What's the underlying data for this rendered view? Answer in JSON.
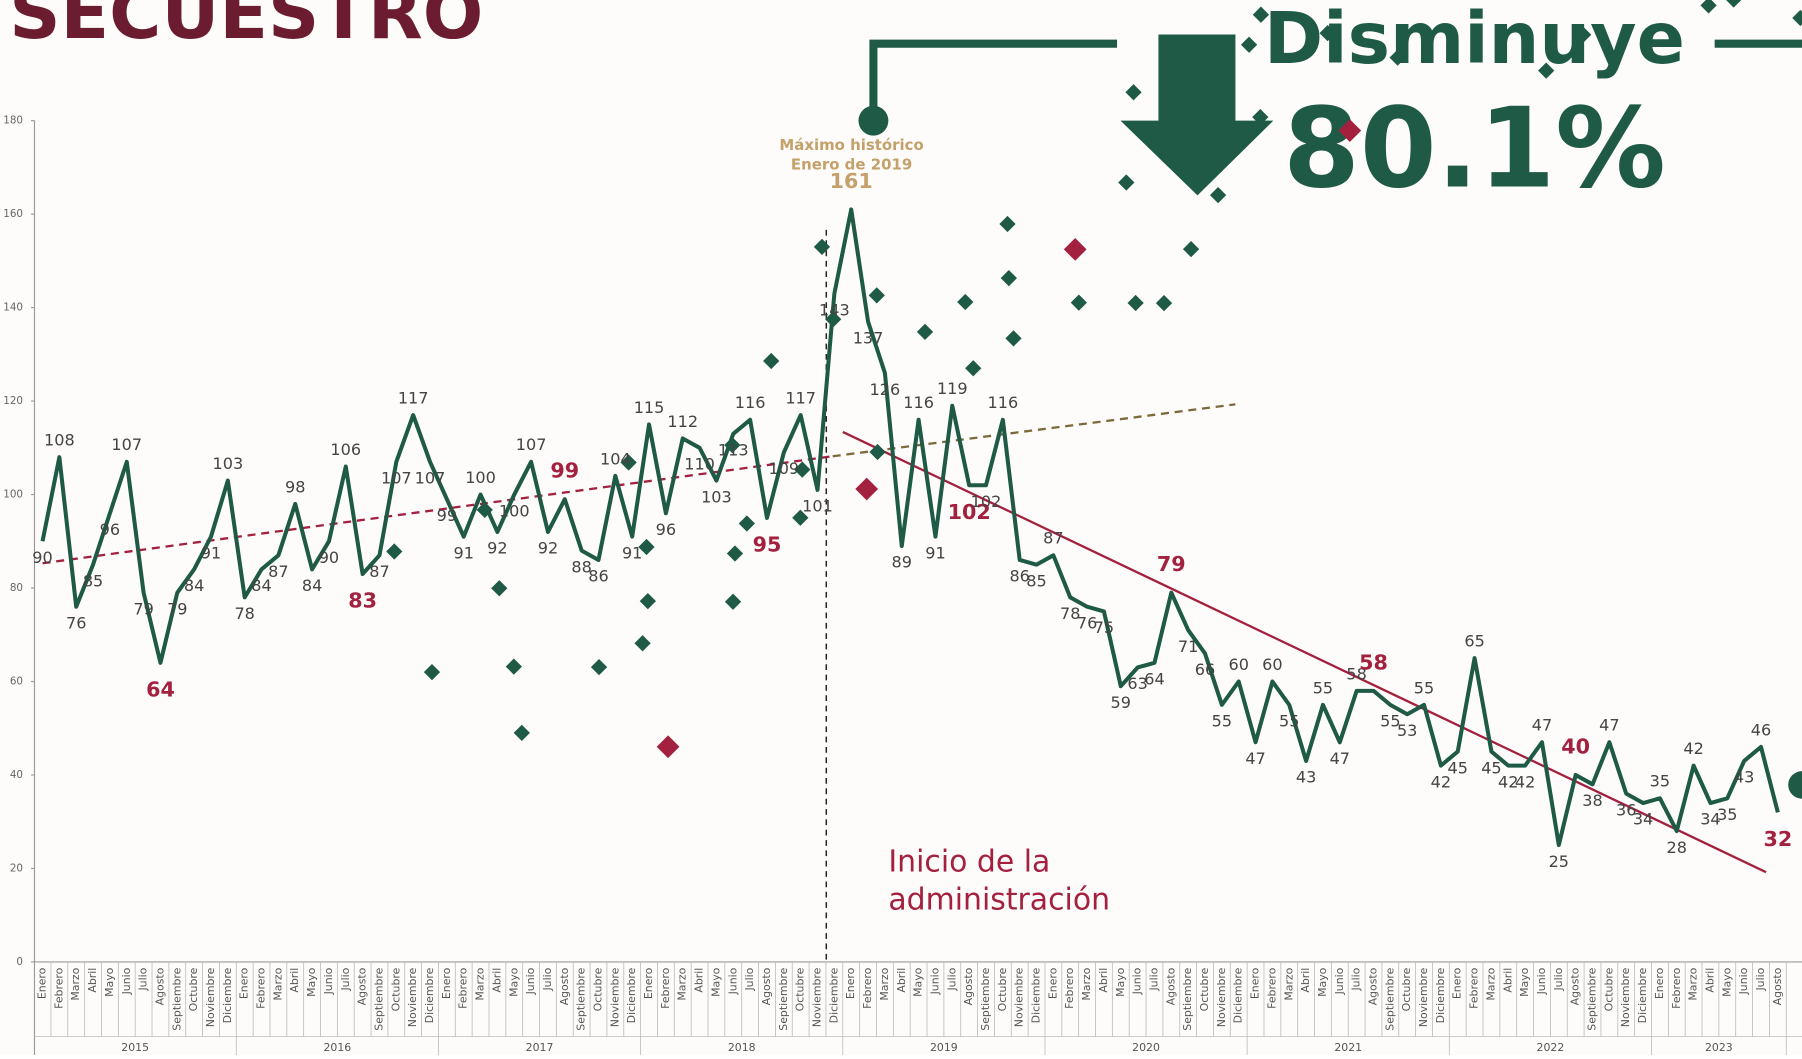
{
  "chart_data": {
    "type": "line",
    "title": "SECUESTRO",
    "headline": "Disminuye",
    "headline_value": "80.1%",
    "peak_note": [
      "Máximo histórico",
      "Enero de 2019"
    ],
    "admin_note": [
      "Inicio de la",
      "administración"
    ],
    "color": "#1e5a46",
    "years": [
      "2015",
      "2016",
      "2017",
      "2018",
      "2019",
      "2020",
      "2021",
      "2022",
      "2023"
    ],
    "categories": [
      "Enero",
      "Febrero",
      "Marzo",
      "Abril",
      "Mayo",
      "Junio",
      "Julio",
      "Agosto",
      "Septiembre",
      "Octubre",
      "Noviembre",
      "Diciembre",
      "Enero",
      "Febrero",
      "Marzo",
      "Abril",
      "Mayo",
      "Junio",
      "Julio",
      "Agosto",
      "Septiembre",
      "Octubre",
      "Noviembre",
      "Diciembre",
      "Enero",
      "Febrero",
      "Marzo",
      "Abril",
      "Mayo",
      "Junio",
      "Julio",
      "Agosto",
      "Septiembre",
      "Octubre",
      "Noviembre",
      "Diciembre",
      "Enero",
      "Febrero",
      "Marzo",
      "Abril",
      "Mayo",
      "Junio",
      "Julio",
      "Agosto",
      "Septiembre",
      "Octubre",
      "Noviembre",
      "Diciembre",
      "Enero",
      "Febrero",
      "Marzo",
      "Abril",
      "Mayo",
      "Junio",
      "Julio",
      "Agosto",
      "Septiembre",
      "Octubre",
      "Noviembre",
      "Diciembre",
      "Enero",
      "Febrero",
      "Marzo",
      "Abril",
      "Mayo",
      "Junio",
      "Julio",
      "Agosto",
      "Septiembre",
      "Octubre",
      "Noviembre",
      "Diciembre",
      "Enero",
      "Febrero",
      "Marzo",
      "Abril",
      "Mayo",
      "Junio",
      "Julio",
      "Agosto",
      "Septiembre",
      "Octubre",
      "Noviembre",
      "Diciembre",
      "Enero",
      "Febrero",
      "Marzo",
      "Abril",
      "Mayo",
      "Junio",
      "Julio",
      "Agosto",
      "Septiembre",
      "Octubre",
      "Noviembre",
      "Diciembre",
      "Enero",
      "Febrero",
      "Marzo",
      "Abril",
      "Mayo",
      "Junio",
      "Julio",
      "Agosto"
    ],
    "values": [
      90,
      108,
      76,
      85,
      96,
      107,
      79,
      64,
      79,
      84,
      91,
      103,
      78,
      84,
      87,
      98,
      84,
      90,
      106,
      83,
      87,
      107,
      117,
      107,
      99,
      91,
      100,
      92,
      100,
      107,
      92,
      99,
      88,
      86,
      104,
      91,
      115,
      96,
      112,
      110,
      103,
      113,
      116,
      95,
      109,
      117,
      101,
      143,
      161,
      137,
      126,
      89,
      116,
      91,
      119,
      102,
      102,
      116,
      86,
      85,
      87,
      78,
      76,
      75,
      59,
      63,
      64,
      79,
      71,
      66,
      55,
      60,
      47,
      60,
      55,
      43,
      55,
      47,
      58,
      58,
      55,
      53,
      55,
      42,
      45,
      65,
      45,
      42,
      42,
      47,
      25,
      40,
      38,
      47,
      36,
      34,
      35,
      28,
      42,
      34,
      35,
      43,
      46,
      32
    ],
    "point_colors": [
      "#1e5a46",
      "#1e5a46",
      "#1e5a46",
      "#1e5a46",
      "#1e5a46",
      "#1e5a46",
      "#1e5a46",
      "#a3213f",
      "#1e5a46",
      "#1e5a46",
      "#1e5a46",
      "#1e5a46",
      "#1e5a46",
      "#1e5a46",
      "#1e5a46",
      "#1e5a46",
      "#1e5a46",
      "#1e5a46",
      "#1e5a46",
      "#a3213f",
      "#1e5a46",
      "#1e5a46",
      "#1e5a46",
      "#1e5a46",
      "#1e5a46",
      "#1e5a46",
      "#1e5a46",
      "#1e5a46",
      "#1e5a46",
      "#1e5a46",
      "#1e5a46",
      "#a3213f",
      "#1e5a46",
      "#1e5a46",
      "#1e5a46",
      "#1e5a46",
      "#1e5a46",
      "#1e5a46",
      "#1e5a46",
      "#1e5a46",
      "#1e5a46",
      "#1e5a46",
      "#1e5a46",
      "#a3213f",
      "#1e5a46",
      "#1e5a46",
      "#1e5a46",
      "#1e5a46",
      "#c4a06a",
      "#1e5a46",
      "#1e5a46",
      "#1e5a46",
      "#1e5a46",
      "#1e5a46",
      "#1e5a46",
      "#a3213f",
      "#1e5a46",
      "#1e5a46",
      "#1e5a46",
      "#1e5a46",
      "#1e5a46",
      "#1e5a46",
      "#1e5a46",
      "#1e5a46",
      "#1e5a46",
      "#1e5a46",
      "#1e5a46",
      "#a3213f",
      "#1e5a46",
      "#1e5a46",
      "#1e5a46",
      "#1e5a46",
      "#1e5a46",
      "#1e5a46",
      "#1e5a46",
      "#1e5a46",
      "#1e5a46",
      "#1e5a46",
      "#1e5a46",
      "#a3213f",
      "#1e5a46",
      "#1e5a46",
      "#1e5a46",
      "#1e5a46",
      "#1e5a46",
      "#1e5a46",
      "#1e5a46",
      "#1e5a46",
      "#1e5a46",
      "#1e5a46",
      "#1e5a46",
      "#a3213f",
      "#1e5a46",
      "#1e5a46",
      "#1e5a46",
      "#1e5a46",
      "#1e5a46",
      "#1e5a46",
      "#1e5a46",
      "#1e5a46",
      "#1e5a46",
      "#1e5a46",
      "#1e5a46",
      "#a3213f"
    ],
    "trend_lines": [
      {
        "x": [
          0,
          46.9
        ],
        "values": [
          85.3,
          108.2
        ],
        "color": "#a3213f",
        "style": "dashed"
      },
      {
        "x": [
          46.9,
          70.8
        ],
        "values": [
          108.2,
          119.3
        ],
        "color": "#7d6a3c",
        "style": "dashed"
      },
      {
        "x": [
          47.5,
          102.3
        ],
        "values": [
          113.4,
          19.2
        ],
        "color": "#a3213f",
        "style": "solid"
      }
    ],
    "ylim": [
      0,
      180
    ],
    "yticks": [
      0,
      20,
      40,
      60,
      80,
      100,
      120,
      140,
      160,
      180
    ],
    "grid": false
  }
}
